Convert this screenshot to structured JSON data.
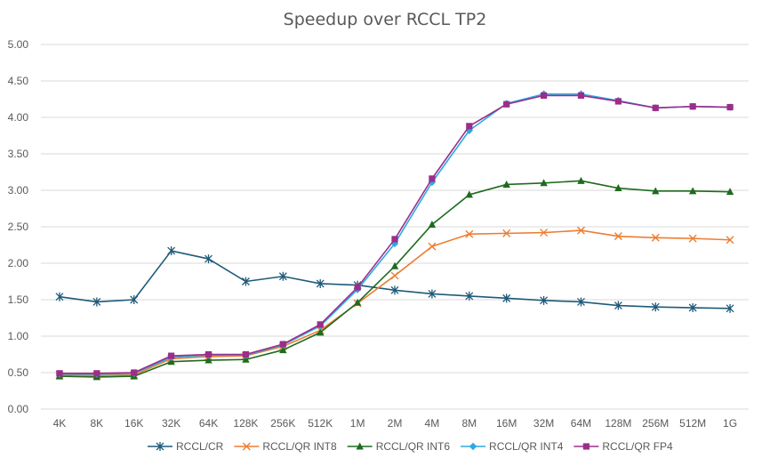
{
  "chart_data": {
    "type": "line",
    "title": "Speedup over RCCL TP2",
    "xlabel": "",
    "ylabel": "",
    "categories": [
      "4K",
      "8K",
      "16K",
      "32K",
      "64K",
      "128K",
      "256K",
      "512K",
      "1M",
      "2M",
      "4M",
      "8M",
      "16M",
      "32M",
      "64M",
      "128M",
      "256M",
      "512M",
      "1G"
    ],
    "ylim": [
      0,
      5
    ],
    "yticks": [
      "0.00",
      "0.50",
      "1.00",
      "1.50",
      "2.00",
      "2.50",
      "3.00",
      "3.50",
      "4.00",
      "4.50",
      "5.00"
    ],
    "grid": true,
    "legend_position": "bottom",
    "series": [
      {
        "name": "RCCL/CR",
        "color": "#1f5a7a",
        "marker": "asterisk",
        "values": [
          1.54,
          1.47,
          1.5,
          2.17,
          2.06,
          1.75,
          1.82,
          1.72,
          1.7,
          1.63,
          1.58,
          1.55,
          1.52,
          1.49,
          1.47,
          1.42,
          1.4,
          1.39,
          1.38
        ]
      },
      {
        "name": "RCCL/QR INT8",
        "color": "#ed7d31",
        "marker": "x",
        "values": [
          0.47,
          0.46,
          0.47,
          0.69,
          0.72,
          0.73,
          0.86,
          1.08,
          1.45,
          1.83,
          2.23,
          2.4,
          2.41,
          2.42,
          2.45,
          2.37,
          2.35,
          2.34,
          2.32
        ]
      },
      {
        "name": "RCCL/QR INT6",
        "color": "#1e6b1e",
        "marker": "triangle",
        "values": [
          0.45,
          0.44,
          0.45,
          0.65,
          0.67,
          0.68,
          0.81,
          1.05,
          1.46,
          1.96,
          2.53,
          2.94,
          3.08,
          3.1,
          3.13,
          3.03,
          2.99,
          2.99,
          2.98
        ]
      },
      {
        "name": "RCCL/QR INT4",
        "color": "#2aaae2",
        "marker": "diamond",
        "values": [
          0.48,
          0.48,
          0.49,
          0.71,
          0.74,
          0.74,
          0.88,
          1.14,
          1.64,
          2.27,
          3.11,
          3.82,
          4.19,
          4.32,
          4.32,
          4.23,
          4.13,
          4.15,
          4.14
        ]
      },
      {
        "name": "RCCL/QR FP4",
        "color": "#9b2d8b",
        "marker": "square",
        "values": [
          0.49,
          0.49,
          0.5,
          0.73,
          0.75,
          0.75,
          0.89,
          1.16,
          1.67,
          2.33,
          3.16,
          3.88,
          4.18,
          4.3,
          4.3,
          4.22,
          4.13,
          4.15,
          4.14
        ]
      }
    ]
  }
}
